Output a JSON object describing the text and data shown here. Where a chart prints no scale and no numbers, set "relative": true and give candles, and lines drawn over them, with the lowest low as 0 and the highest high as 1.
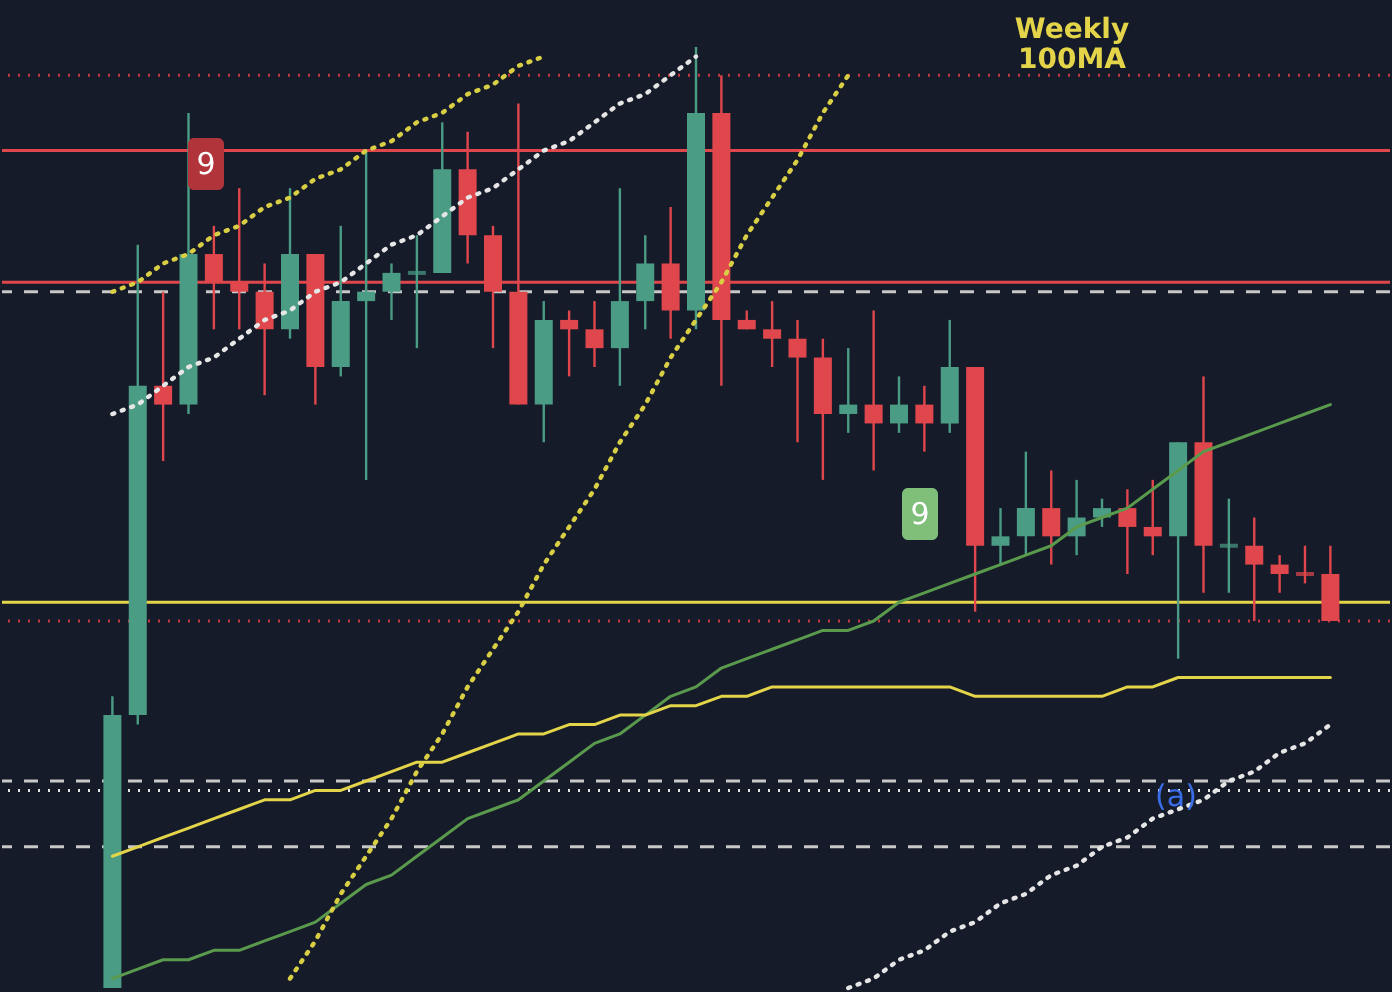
{
  "chart_data": {
    "type": "candlestick",
    "relative": true,
    "categories": [
      null,
      null,
      null,
      null,
      null,
      null,
      null,
      null,
      null,
      null,
      null,
      null,
      null,
      null,
      null,
      null,
      null,
      null,
      null,
      null,
      null,
      null,
      null,
      null,
      null,
      null,
      null,
      null,
      null,
      null,
      null,
      null,
      null,
      null,
      null,
      null,
      null,
      null,
      null,
      null,
      null,
      null,
      null,
      null,
      null,
      null,
      null,
      null,
      null
    ],
    "ohlc": [
      [
        0,
        0.31,
        0,
        0.29
      ],
      [
        0.29,
        0.79,
        0.28,
        0.64
      ],
      [
        0.64,
        0.74,
        0.56,
        0.62
      ],
      [
        0.62,
        0.93,
        0.61,
        0.78
      ],
      [
        0.78,
        0.81,
        0.7,
        0.75
      ],
      [
        0.75,
        0.85,
        0.7,
        0.74
      ],
      [
        0.74,
        0.77,
        0.63,
        0.7
      ],
      [
        0.7,
        0.85,
        0.69,
        0.78
      ],
      [
        0.78,
        0.78,
        0.62,
        0.66
      ],
      [
        0.66,
        0.81,
        0.65,
        0.73
      ],
      [
        0.73,
        0.89,
        0.54,
        0.74
      ],
      [
        0.74,
        0.77,
        0.71,
        0.76
      ],
      [
        0.76,
        0.8,
        0.68,
        0.76
      ],
      [
        0.76,
        0.92,
        0.76,
        0.87
      ],
      [
        0.87,
        0.91,
        0.77,
        0.8
      ],
      [
        0.8,
        0.81,
        0.68,
        0.74
      ],
      [
        0.74,
        0.94,
        0.62,
        0.62
      ],
      [
        0.62,
        0.73,
        0.58,
        0.71
      ],
      [
        0.71,
        0.72,
        0.65,
        0.7
      ],
      [
        0.7,
        0.73,
        0.66,
        0.68
      ],
      [
        0.68,
        0.85,
        0.64,
        0.73
      ],
      [
        0.73,
        0.8,
        0.7,
        0.77
      ],
      [
        0.77,
        0.83,
        0.69,
        0.72
      ],
      [
        0.72,
        1,
        0.7,
        0.93
      ],
      [
        0.93,
        0.97,
        0.64,
        0.71
      ],
      [
        0.71,
        0.72,
        0.7,
        0.7
      ],
      [
        0.7,
        0.73,
        0.66,
        0.69
      ],
      [
        0.69,
        0.71,
        0.58,
        0.67
      ],
      [
        0.67,
        0.69,
        0.54,
        0.61
      ],
      [
        0.61,
        0.68,
        0.59,
        0.62
      ],
      [
        0.62,
        0.72,
        0.55,
        0.6
      ],
      [
        0.6,
        0.65,
        0.59,
        0.62
      ],
      [
        0.62,
        0.64,
        0.57,
        0.6
      ],
      [
        0.6,
        0.71,
        0.59,
        0.66
      ],
      [
        0.66,
        0.66,
        0.4,
        0.47
      ],
      [
        0.47,
        0.51,
        0.45,
        0.48
      ],
      [
        0.48,
        0.57,
        0.46,
        0.51
      ],
      [
        0.51,
        0.55,
        0.45,
        0.48
      ],
      [
        0.48,
        0.54,
        0.46,
        0.5
      ],
      [
        0.5,
        0.52,
        0.49,
        0.51
      ],
      [
        0.51,
        0.53,
        0.44,
        0.49
      ],
      [
        0.49,
        0.54,
        0.46,
        0.48
      ],
      [
        0.48,
        0.58,
        0.35,
        0.58
      ],
      [
        0.58,
        0.65,
        0.42,
        0.47
      ],
      [
        0.47,
        0.52,
        0.42,
        0.47
      ],
      [
        0.47,
        0.5,
        0.39,
        0.45
      ],
      [
        0.45,
        0.46,
        0.42,
        0.44
      ],
      [
        0.44,
        0.47,
        0.43,
        0.44
      ],
      [
        0.44,
        0.47,
        0.39,
        0.39
      ]
    ],
    "colors": [
      "#4a9c84",
      "#4a9c84",
      "#e0474c",
      "#4a9c84",
      "#e0474c",
      "#e0474c",
      "#e0474c",
      "#4a9c84",
      "#e0474c",
      "#4a9c84",
      "#4a9c84",
      "#4a9c84",
      "#4a9c84",
      "#4a9c84",
      "#e0474c",
      "#e0474c",
      "#e0474c",
      "#4a9c84",
      "#e0474c",
      "#e0474c",
      "#4a9c84",
      "#4a9c84",
      "#e0474c",
      "#4a9c84",
      "#e0474c",
      "#e0474c",
      "#e0474c",
      "#e0474c",
      "#e0474c",
      "#4a9c84",
      "#e0474c",
      "#4a9c84",
      "#e0474c",
      "#4a9c84",
      "#e0474c",
      "#4a9c84",
      "#4a9c84",
      "#e0474c",
      "#4a9c84",
      "#4a9c84",
      "#e0474c",
      "#e0474c",
      "#4a9c84",
      "#e0474c",
      "#4a9c84",
      "#e0474c",
      "#e0474c",
      "#e0474c",
      "#e0474c"
    ],
    "series": [
      {
        "type": "line",
        "color": "#5a9a4c",
        "line_style": "solid",
        "values": [
          0.01,
          0.02,
          0.03,
          0.03,
          0.04,
          0.04,
          0.05,
          0.06,
          0.07,
          0.09,
          0.11,
          0.12,
          0.14,
          0.16,
          0.18,
          0.19,
          0.2,
          0.22,
          0.24,
          0.26,
          0.27,
          0.29,
          0.31,
          0.32,
          0.34,
          0.35,
          0.36,
          0.37,
          0.38,
          0.38,
          0.39,
          0.41,
          0.42,
          0.43,
          0.44,
          0.45,
          0.46,
          0.47,
          0.49,
          0.5,
          0.51,
          0.53,
          0.55,
          0.57,
          0.58,
          0.59,
          0.6,
          0.61,
          0.62
        ]
      },
      {
        "type": "line",
        "color": "#e3d44a",
        "line_style": "solid",
        "values": [
          0.14,
          0.15,
          0.16,
          0.17,
          0.18,
          0.19,
          0.2,
          0.2,
          0.21,
          0.21,
          0.22,
          0.23,
          0.24,
          0.24,
          0.25,
          0.26,
          0.27,
          0.27,
          0.28,
          0.28,
          0.29,
          0.29,
          0.3,
          0.3,
          0.31,
          0.31,
          0.32,
          0.32,
          0.32,
          0.32,
          0.32,
          0.32,
          0.32,
          0.32,
          0.31,
          0.31,
          0.31,
          0.31,
          0.31,
          0.31,
          0.32,
          0.32,
          0.33,
          0.33,
          0.33,
          0.33,
          0.33,
          0.33,
          0.33
        ]
      },
      {
        "type": "line",
        "color": "#e6e6e6",
        "line_style": "dotted",
        "values": [
          0.61,
          0.62,
          0.64,
          0.66,
          0.67,
          0.69,
          0.71,
          0.72,
          0.74,
          0.75,
          0.77,
          0.79,
          0.8,
          0.82,
          0.84,
          0.85,
          0.87,
          0.89,
          0.9,
          0.92,
          0.94,
          0.95,
          0.97,
          0.99,
          null,
          null,
          null,
          null,
          null,
          null,
          null,
          null,
          null,
          null,
          null,
          null,
          null,
          null,
          null,
          null,
          null,
          null,
          null,
          null,
          null,
          null,
          null,
          null,
          null
        ]
      },
      {
        "type": "line",
        "color": "#d9cf45",
        "line_style": "dotted",
        "values": [
          0.74,
          0.75,
          0.77,
          0.78,
          0.8,
          0.81,
          0.83,
          0.84,
          0.86,
          0.87,
          0.89,
          0.9,
          0.92,
          0.93,
          0.95,
          0.96,
          0.98,
          0.99,
          null,
          null,
          null,
          null,
          null,
          null,
          null,
          null,
          null,
          null,
          null,
          null,
          null,
          null,
          null,
          null,
          null,
          null,
          null,
          null,
          null,
          null,
          null,
          null,
          null,
          null,
          null,
          null,
          null,
          null,
          null
        ]
      },
      {
        "type": "line",
        "color": "#d9cf45",
        "line_style": "dotted",
        "values": [
          null,
          null,
          null,
          null,
          null,
          null,
          null,
          0.01,
          0.05,
          0.1,
          0.14,
          0.18,
          0.23,
          0.27,
          0.32,
          0.36,
          0.4,
          0.45,
          0.49,
          0.53,
          0.58,
          0.62,
          0.67,
          0.71,
          0.75,
          0.8,
          0.84,
          0.88,
          0.93,
          0.97,
          null,
          null,
          null,
          null,
          null,
          null,
          null,
          null,
          null,
          null,
          null,
          null,
          null,
          null,
          null,
          null,
          null,
          null,
          null
        ]
      },
      {
        "type": "line",
        "color": "#e6e6e6",
        "line_style": "dotted",
        "values": [
          null,
          null,
          null,
          null,
          null,
          null,
          null,
          null,
          null,
          null,
          null,
          null,
          null,
          null,
          null,
          null,
          null,
          null,
          null,
          null,
          null,
          null,
          null,
          null,
          null,
          null,
          null,
          null,
          null,
          0.0,
          0.01,
          0.03,
          0.04,
          0.06,
          0.07,
          0.09,
          0.1,
          0.12,
          0.13,
          0.15,
          0.16,
          0.18,
          0.19,
          0.2,
          0.22,
          0.23,
          0.25,
          0.26,
          0.28
        ]
      }
    ],
    "ref_lines": [
      {
        "axis": "y",
        "value": 0.97,
        "color": "#c0393e",
        "line_style": "dotted"
      },
      {
        "axis": "y",
        "value": 0.89,
        "color": "#e0474c",
        "line_style": "solid"
      },
      {
        "axis": "y",
        "value": 0.75,
        "color": "#e0474c",
        "line_style": "solid"
      },
      {
        "axis": "y",
        "value": 0.74,
        "color": "#c8c8c8",
        "line_style": "dashed"
      },
      {
        "axis": "y",
        "value": 0.41,
        "color": "#e3d44a",
        "line_style": "solid"
      },
      {
        "axis": "y",
        "value": 0.39,
        "color": "#c0393e",
        "line_style": "dotted"
      },
      {
        "axis": "y",
        "value": 0.22,
        "color": "#c8c8c8",
        "line_style": "dashed"
      },
      {
        "axis": "y",
        "value": 0.21,
        "color": "#e6e6e6",
        "line_style": "dotted"
      },
      {
        "axis": "y",
        "value": 0.15,
        "color": "#c8c8c8",
        "line_style": "dashed"
      }
    ],
    "annotations": [
      "Weekly\n100MA",
      "9",
      "9",
      "(a)"
    ]
  }
}
